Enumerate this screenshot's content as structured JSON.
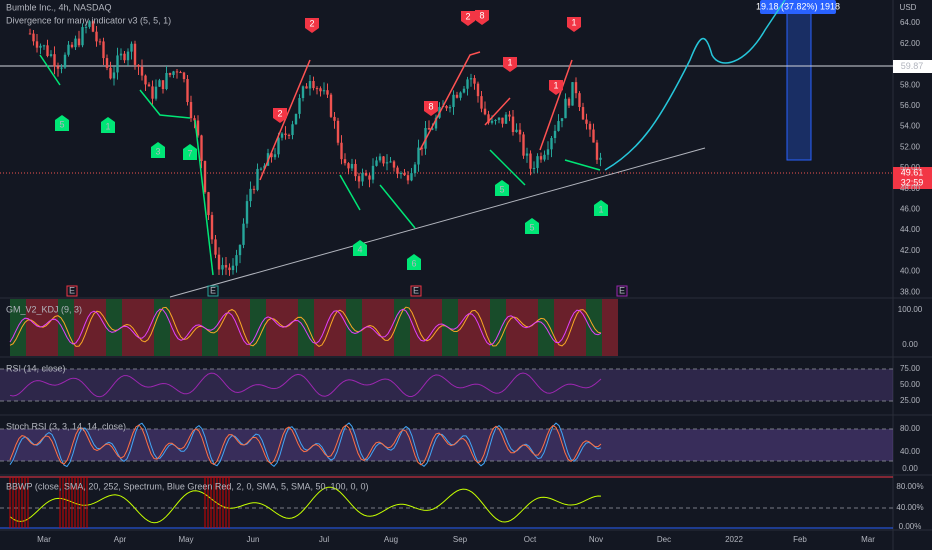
{
  "header": {
    "title": "Bumble Inc., 4h, NASDAQ",
    "indicator": "Divergence for many indicator v3 (5, 5, 1)",
    "currency": "USD"
  },
  "price_axis": [
    "64.00",
    "62.00",
    "58.00",
    "56.00",
    "54.00",
    "52.00",
    "50.00",
    "48.00",
    "46.00",
    "44.00",
    "42.00",
    "40.00",
    "38.00"
  ],
  "price_labels": {
    "level": "59.87",
    "last": "49.61",
    "countdown": "32:59"
  },
  "measure": "19.18 (37.82%) 1918",
  "time_axis": [
    "Mar",
    "Apr",
    "May",
    "Jun",
    "Jul",
    "Aug",
    "Sep",
    "Oct",
    "Nov",
    "Dec",
    "2022",
    "Feb",
    "Mar"
  ],
  "signals": {
    "bearish": [
      "2",
      "2",
      "8",
      "1",
      "2",
      "8",
      "1",
      "1"
    ],
    "bullish": [
      "5",
      "1",
      "3",
      "7",
      "4",
      "6",
      "5",
      "5",
      "1"
    ],
    "earnings": [
      "E",
      "E",
      "E",
      "E"
    ]
  },
  "panes": [
    {
      "name": "GM_V2_KDJ (9, 3)",
      "ticks": [
        "100.00",
        "0.00"
      ]
    },
    {
      "name": "RSI (14, close)",
      "ticks": [
        "75.00",
        "50.00",
        "25.00"
      ]
    },
    {
      "name": "Stoch RSI (3, 3, 14, 14, close)",
      "ticks": [
        "80.00",
        "40.00",
        "0.00"
      ]
    },
    {
      "name": "BBWP (close, SMA, 20, 252, Spectrum, Blue Green Red, 2, 0, SMA, 5, SMA, 50, 100, 0, 0)",
      "ticks": [
        "80.00%",
        "40.00%",
        "0.00%"
      ]
    }
  ]
}
